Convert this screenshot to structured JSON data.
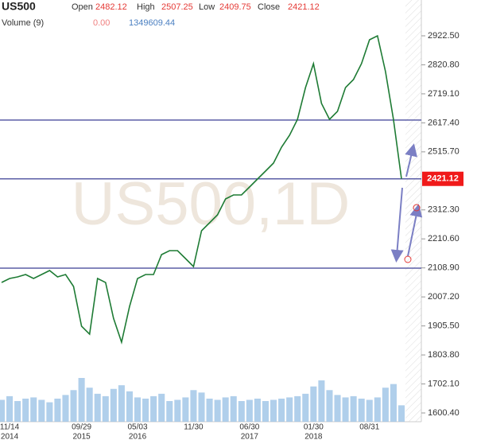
{
  "chart_data": {
    "type": "line",
    "symbol": "US500",
    "watermark": "US500,1D",
    "ohlc_labels": {
      "open": "Open",
      "high": "High",
      "low": "Low",
      "close": "Close"
    },
    "ohlc": {
      "open": 2482.12,
      "high": 2507.25,
      "low": 2409.75,
      "close": 2421.12
    },
    "volume_label": "Volume (9)",
    "volume_info": {
      "first": "0.00",
      "second": "1349609.44"
    },
    "categories": [
      null,
      "11/14",
      null,
      null,
      null,
      null,
      null,
      null,
      null,
      null,
      "09/29",
      null,
      null,
      null,
      null,
      null,
      null,
      "05/03",
      null,
      null,
      null,
      null,
      null,
      null,
      "11/30",
      null,
      null,
      null,
      null,
      null,
      null,
      "06/30",
      null,
      null,
      null,
      null,
      null,
      null,
      null,
      "01/30",
      null,
      null,
      null,
      null,
      null,
      null,
      "08/31",
      null,
      null,
      null,
      null
    ],
    "category_years": [
      null,
      "2014",
      null,
      null,
      null,
      null,
      null,
      null,
      null,
      null,
      "2015",
      null,
      null,
      null,
      null,
      null,
      null,
      "2016",
      null,
      null,
      null,
      null,
      null,
      null,
      null,
      null,
      null,
      null,
      null,
      null,
      null,
      "2017",
      null,
      null,
      null,
      null,
      null,
      null,
      null,
      "2018",
      null,
      null,
      null,
      null,
      null,
      null,
      null,
      null,
      null,
      null,
      null
    ],
    "series": [
      {
        "name": "US500",
        "color": "#1e7b34",
        "values": [
          2057.9,
          2071.9,
          2077.4,
          2085.8,
          2071.9,
          2085.8,
          2099.7,
          2077.4,
          2085.8,
          2044.0,
          1904.5,
          1876.6,
          2071.9,
          2057.9,
          1932.4,
          1848.7,
          1974.2,
          2071.9,
          2085.8,
          2085.8,
          2155.5,
          2169.5,
          2169.5,
          2141.6,
          2113.7,
          2239.2,
          2267.1,
          2295.0,
          2350.8,
          2364.7,
          2364.7,
          2392.6,
          2420.5,
          2448.4,
          2476.3,
          2532.0,
          2573.9,
          2629.7,
          2741.2,
          2824.9,
          2685.4,
          2629.7,
          2657.5,
          2741.2,
          2769.1,
          2824.9,
          2908.6,
          2922.5,
          2797.0,
          2629.7,
          2421.12
        ]
      },
      {
        "name": "Volume",
        "color": "#9cc3e6",
        "values": [
          1800000,
          2100000,
          1700000,
          1900000,
          2000000,
          1800000,
          1600000,
          1900000,
          2200000,
          2600000,
          3600000,
          2800000,
          2300000,
          2100000,
          2700000,
          3000000,
          2500000,
          2000000,
          1900000,
          2100000,
          2300000,
          1700000,
          1800000,
          2000000,
          2600000,
          2400000,
          1900000,
          1800000,
          2000000,
          2100000,
          1700000,
          1800000,
          1900000,
          1700000,
          1800000,
          1900000,
          2000000,
          2100000,
          2300000,
          2900000,
          3400000,
          2600000,
          2200000,
          2000000,
          2100000,
          1900000,
          1800000,
          2000000,
          2800000,
          3100000,
          1349609.44
        ]
      }
    ],
    "last_price": {
      "value": 2421.12,
      "label": "2421.12"
    },
    "hlines": [
      2627,
      2421,
      2108
    ],
    "hline_color": "#5b5ea6",
    "ylim": [
      1491.6,
      3048.0
    ],
    "yticks": [
      {
        "value": 1600.4,
        "label": "1600.40"
      },
      {
        "value": 1702.1,
        "label": "1702.10"
      },
      {
        "value": 1803.8,
        "label": "1803.80"
      },
      {
        "value": 1905.5,
        "label": "1905.50"
      },
      {
        "value": 2007.2,
        "label": "2007.20"
      },
      {
        "value": 2108.9,
        "label": "2108.90"
      },
      {
        "value": 2210.6,
        "label": "2210.60"
      },
      {
        "value": 2312.3,
        "label": "2312.30"
      },
      {
        "value": 2515.7,
        "label": "2515.70"
      },
      {
        "value": 2617.4,
        "label": "2617.40"
      },
      {
        "value": 2719.1,
        "label": "2719.10"
      },
      {
        "value": 2820.8,
        "label": "2820.80"
      },
      {
        "value": 2922.5,
        "label": "2922.50"
      }
    ]
  }
}
